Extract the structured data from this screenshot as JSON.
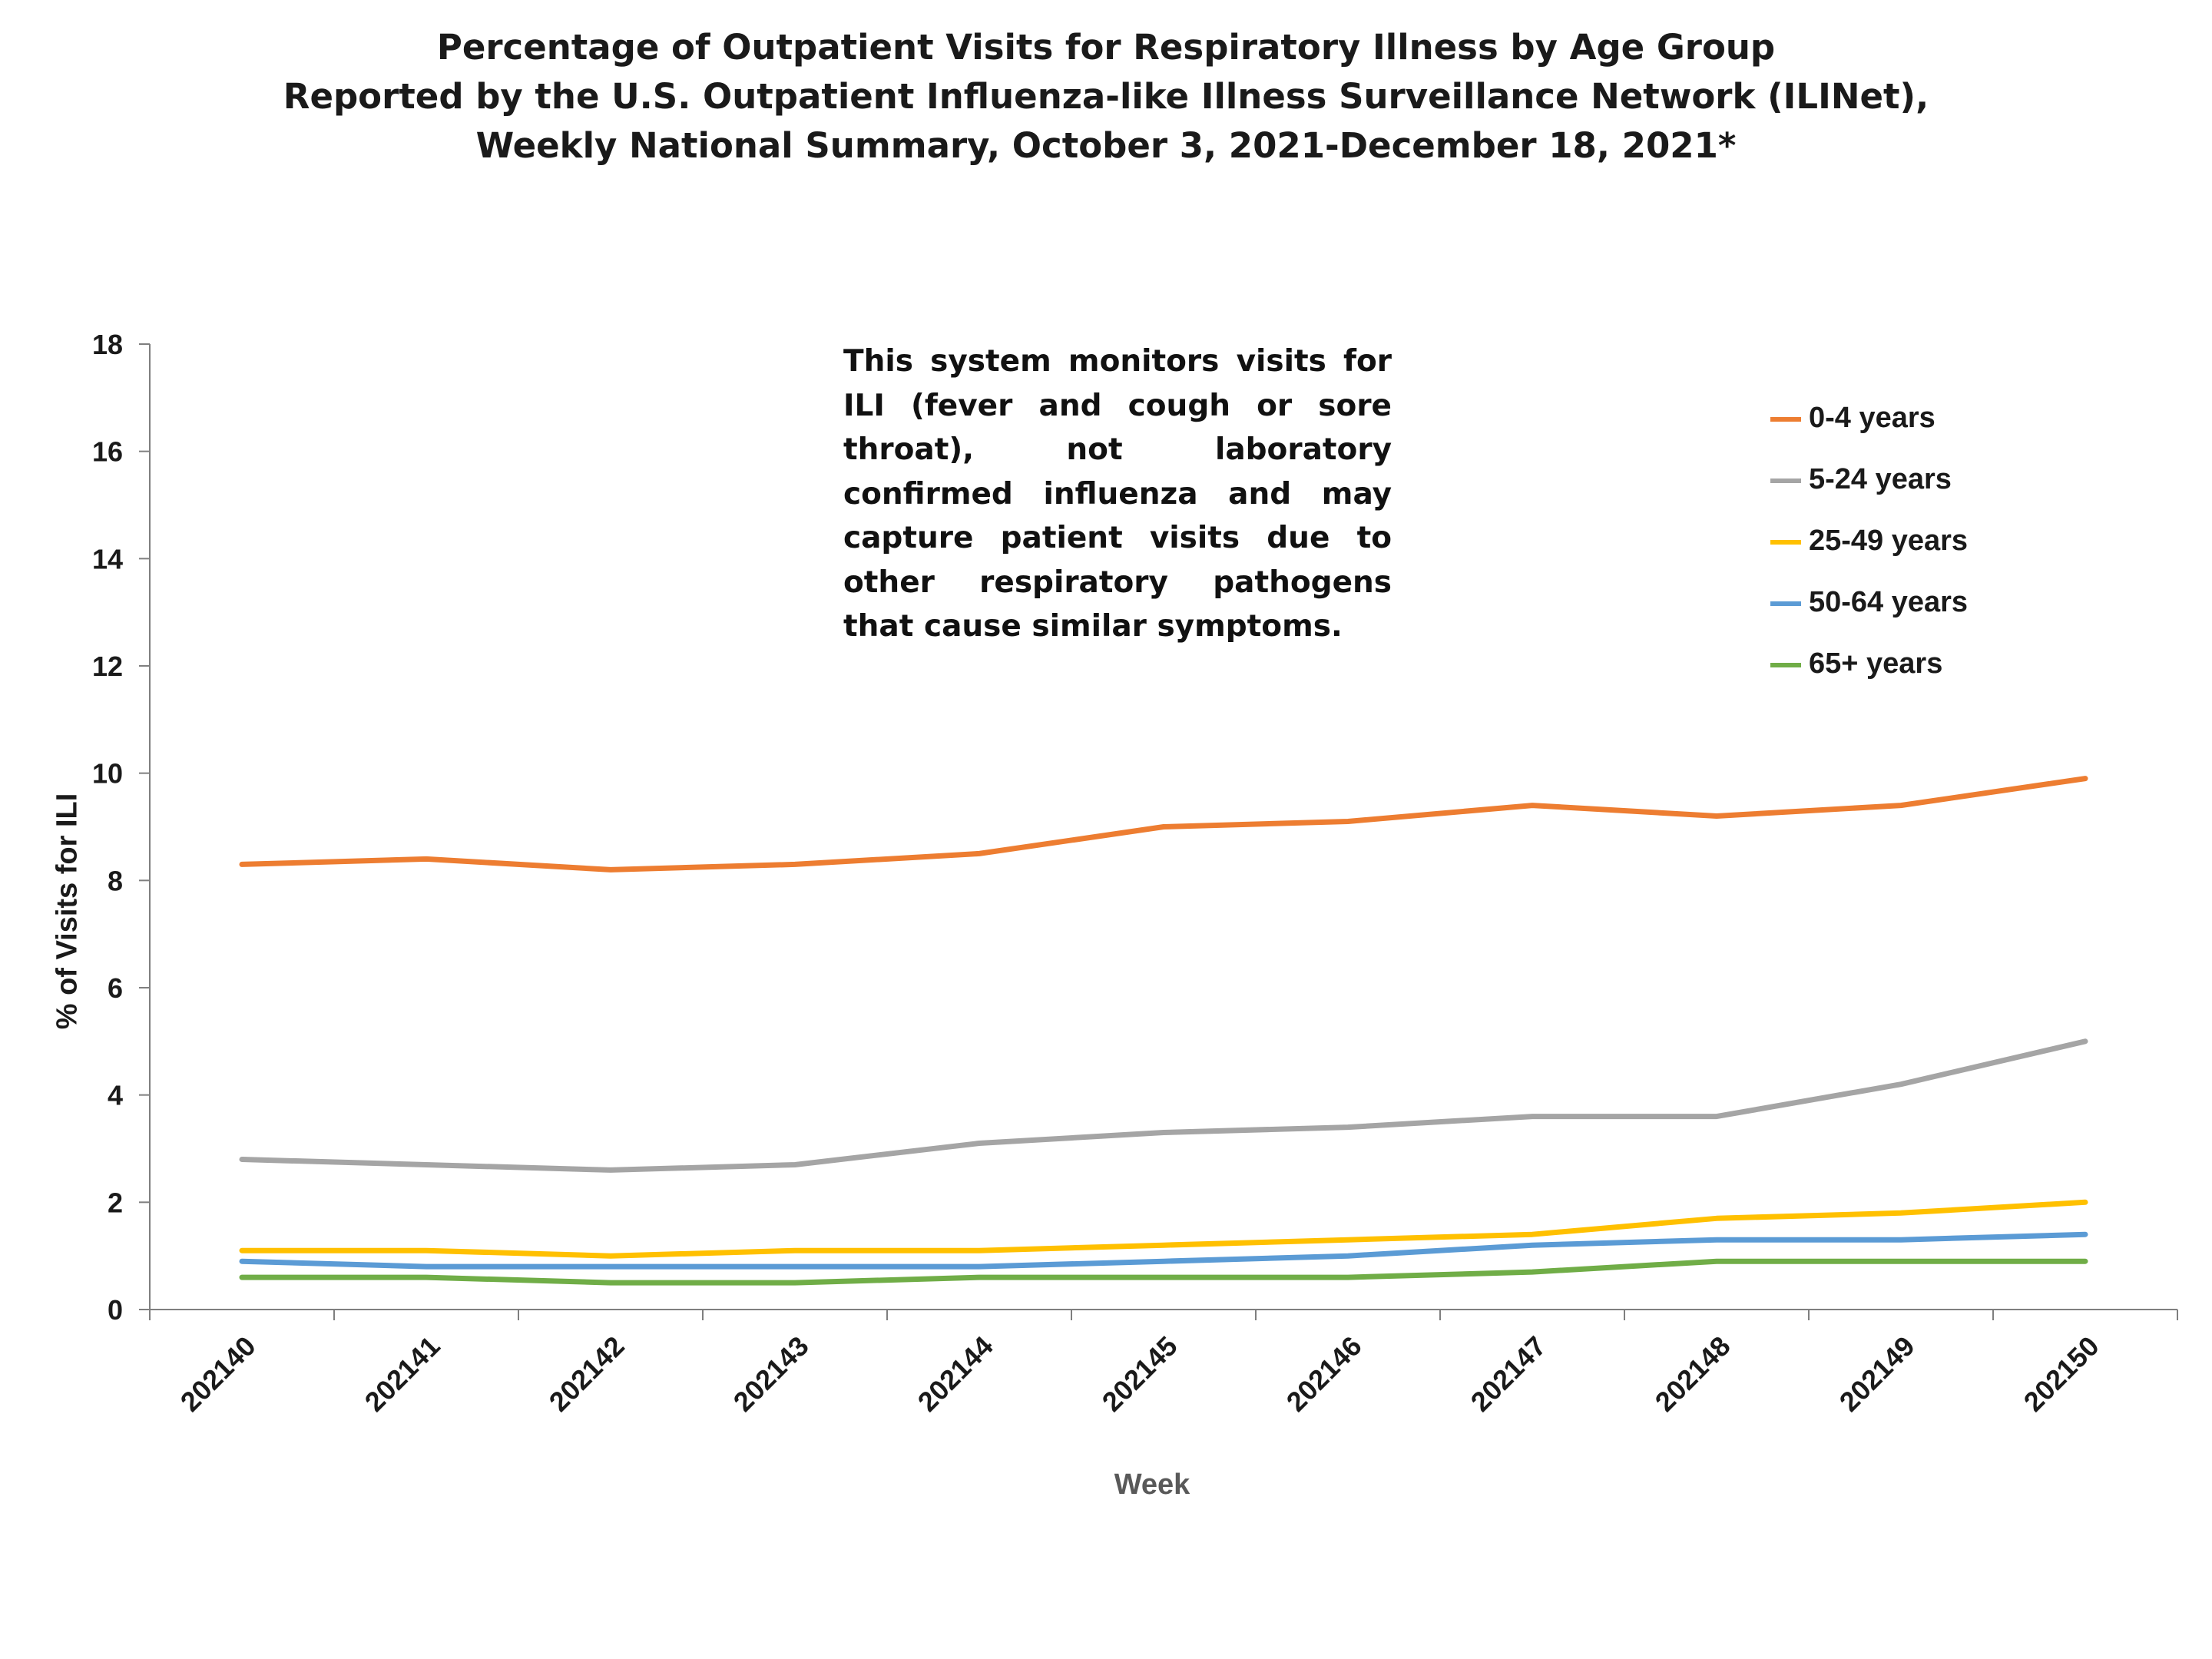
{
  "title_lines": [
    "Percentage of Outpatient Visits for Respiratory Illness by Age Group",
    "Reported by the U.S. Outpatient Influenza-like Illness Surveillance Network (ILINet),",
    "Weekly National Summary, October 3, 2021-December 18, 2021*"
  ],
  "note": "This system monitors visits for ILI (fever and cough or sore throat), not laboratory confirmed influenza and may capture patient visits due to other respiratory pathogens that cause similar symptoms.",
  "chart_data": {
    "type": "line",
    "xlabel": "Week",
    "ylabel": "% of Visits for ILI",
    "ylim": [
      0,
      18
    ],
    "yticks": [
      0,
      2,
      4,
      6,
      8,
      10,
      12,
      14,
      16,
      18
    ],
    "grid": false,
    "legend_position": "top-right",
    "categories": [
      "202140",
      "202141",
      "202142",
      "202143",
      "202144",
      "202145",
      "202146",
      "202147",
      "202148",
      "202149",
      "202150"
    ],
    "series": [
      {
        "name": "0-4 years",
        "color": "#ED7D31",
        "values": [
          8.3,
          8.4,
          8.2,
          8.3,
          8.5,
          9.0,
          9.1,
          9.4,
          9.2,
          9.4,
          9.9
        ]
      },
      {
        "name": "5-24 years",
        "color": "#A5A5A5",
        "values": [
          2.8,
          2.7,
          2.6,
          2.7,
          3.1,
          3.3,
          3.4,
          3.6,
          3.6,
          4.2,
          5.0
        ]
      },
      {
        "name": "25-49 years",
        "color": "#FFC000",
        "values": [
          1.1,
          1.1,
          1.0,
          1.1,
          1.1,
          1.2,
          1.3,
          1.4,
          1.7,
          1.8,
          2.0
        ]
      },
      {
        "name": "50-64 years",
        "color": "#5B9BD5",
        "values": [
          0.9,
          0.8,
          0.8,
          0.8,
          0.8,
          0.9,
          1.0,
          1.2,
          1.3,
          1.3,
          1.4
        ]
      },
      {
        "name": "65+ years",
        "color": "#70AD47",
        "values": [
          0.6,
          0.6,
          0.5,
          0.5,
          0.6,
          0.6,
          0.6,
          0.7,
          0.9,
          0.9,
          0.9
        ]
      }
    ]
  }
}
